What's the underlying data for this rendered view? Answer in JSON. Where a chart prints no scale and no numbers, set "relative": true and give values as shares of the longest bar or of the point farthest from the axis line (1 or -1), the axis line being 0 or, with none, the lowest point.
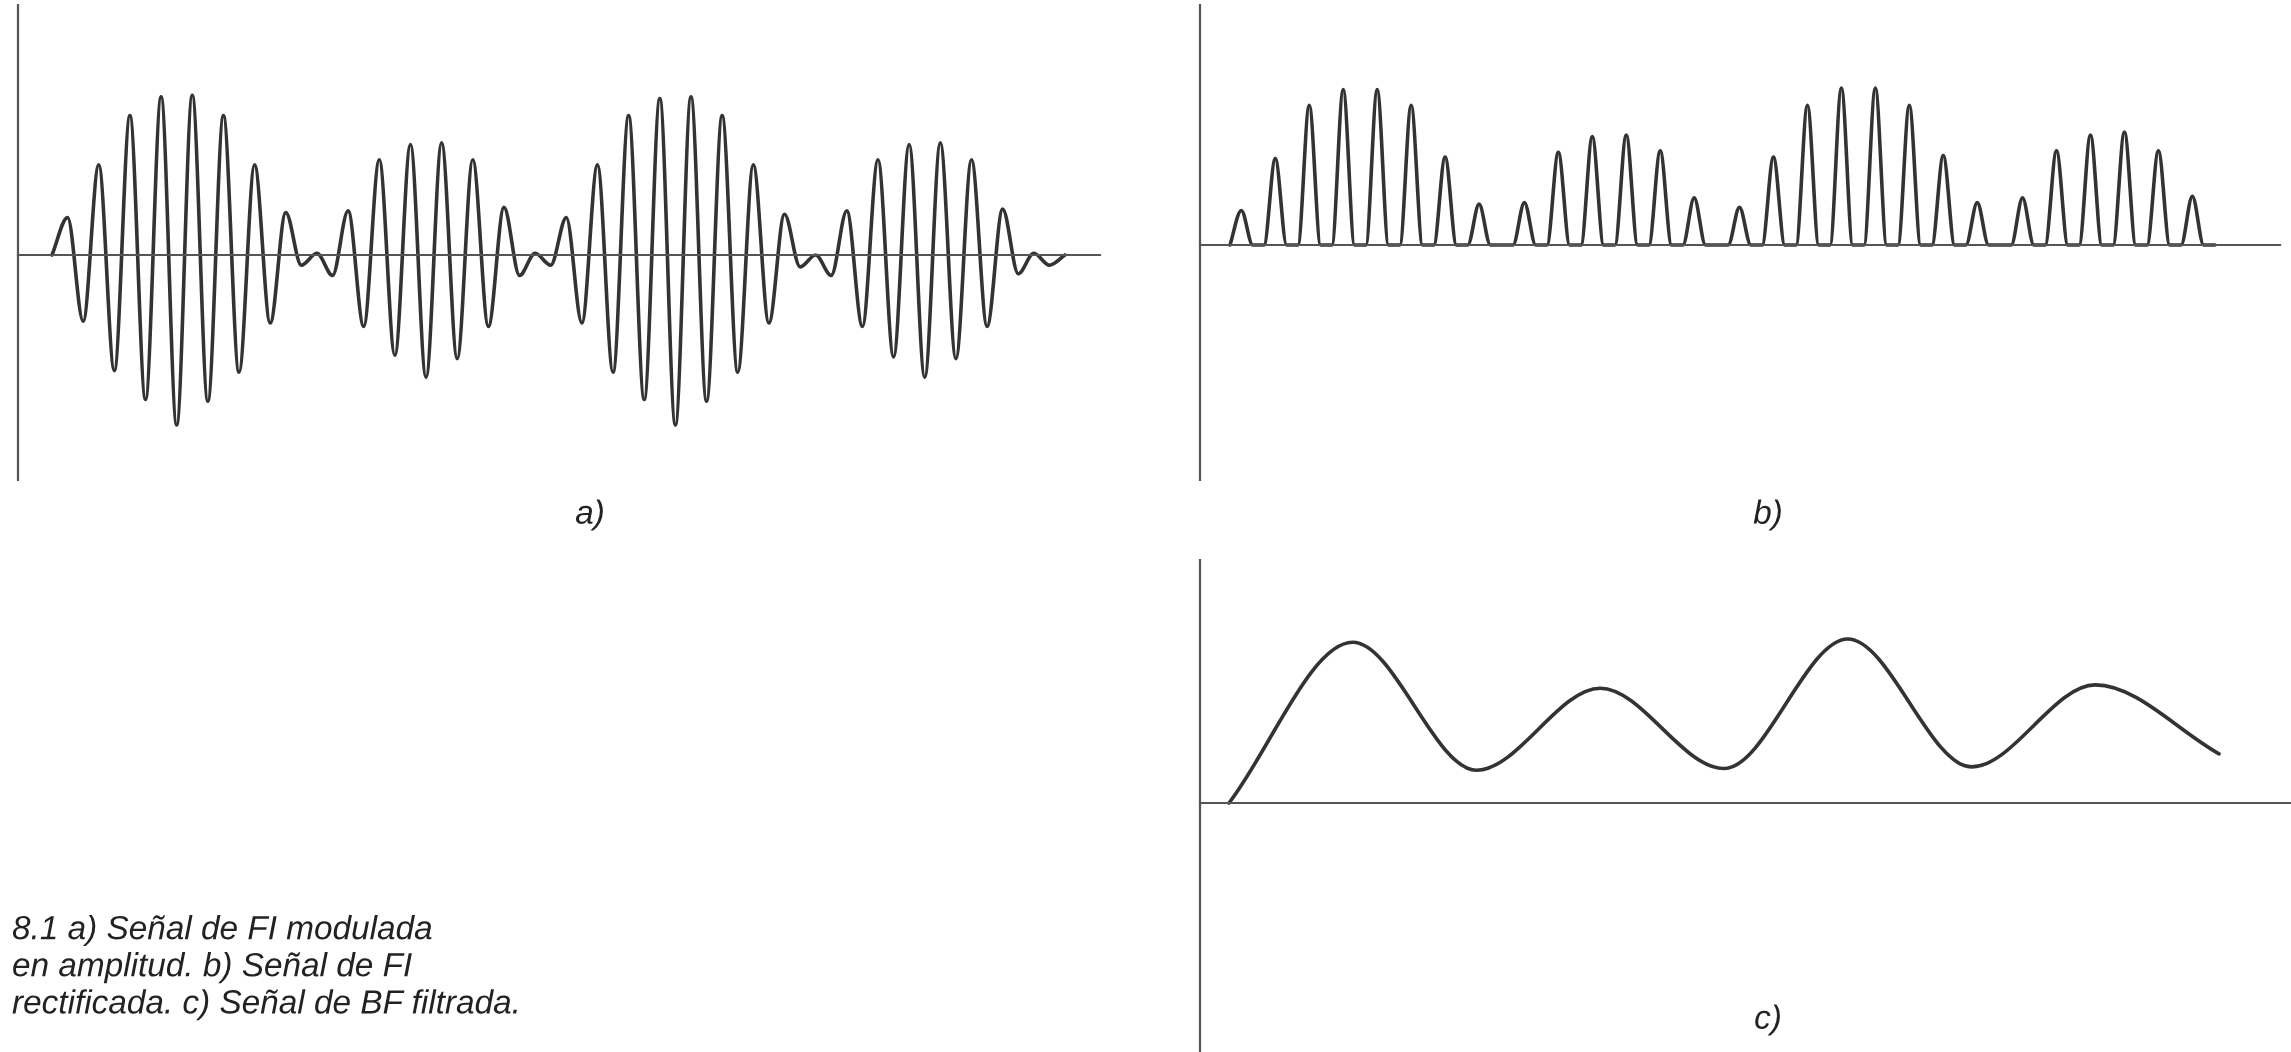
{
  "chart_data": [
    {
      "type": "line",
      "relative": true,
      "xlabel": "a)",
      "annotations": [
        "8.1 a) Señal de FI modulada\nen amplitud. b) Señal de FI\nrectificada. c) Señal de BF filtrada."
      ],
      "categories": [
        null,
        null,
        null,
        null,
        null,
        null,
        null,
        null,
        null,
        null,
        null,
        null,
        null,
        null,
        null,
        null,
        null,
        null,
        null,
        null,
        null,
        null,
        null,
        null,
        null,
        null,
        null,
        null,
        null,
        null,
        null,
        null,
        null,
        null,
        null,
        null,
        null,
        null,
        null,
        null,
        null,
        null,
        null,
        null,
        null,
        null,
        null,
        null,
        null,
        null,
        null,
        null,
        null,
        null,
        null,
        null,
        null,
        null,
        null,
        null,
        null,
        null,
        null,
        null,
        null,
        null
      ],
      "series": [
        {
          "color": "#333333",
          "values": [
            0,
            0.22,
            -0.39,
            0.53,
            -0.68,
            0.82,
            -0.85,
            0.93,
            -1,
            0.94,
            -0.86,
            0.82,
            -0.69,
            0.53,
            -0.4,
            0.25,
            -0.06,
            0.01,
            -0.12,
            0.26,
            -0.42,
            0.56,
            -0.59,
            0.65,
            -0.72,
            0.66,
            -0.61,
            0.56,
            -0.42,
            0.28,
            -0.12,
            0.01,
            -0.06,
            0.22,
            -0.4,
            0.53,
            -0.69,
            0.82,
            -0.85,
            0.92,
            -1,
            0.93,
            -0.86,
            0.82,
            -0.69,
            0.53,
            -0.4,
            0.24,
            -0.07,
            0,
            -0.12,
            0.26,
            -0.42,
            0.56,
            -0.6,
            0.65,
            -0.72,
            0.66,
            -0.61,
            0.56,
            -0.42,
            0.27,
            -0.11,
            0.01,
            -0.06,
            0
          ]
        }
      ]
    },
    {
      "type": "line",
      "relative": true,
      "xlabel": "b)",
      "categories": [
        null,
        null,
        null,
        null,
        null,
        null,
        null,
        null,
        null,
        null,
        null,
        null,
        null,
        null,
        null,
        null,
        null,
        null,
        null,
        null,
        null,
        null,
        null,
        null,
        null,
        null,
        null,
        null,
        null,
        null,
        null,
        null,
        null,
        null,
        null,
        null,
        null,
        null,
        null,
        null,
        null,
        null,
        null,
        null,
        null,
        null,
        null,
        null,
        null,
        null,
        null,
        null,
        null,
        null,
        null,
        null,
        null,
        null,
        null,
        null,
        null,
        null,
        null,
        null,
        null,
        null,
        null,
        null,
        null,
        null,
        null,
        null,
        null,
        null,
        null,
        null,
        null,
        null,
        null,
        null,
        null,
        null,
        null,
        null,
        null,
        null,
        null,
        null
      ],
      "series": [
        {
          "color": "#333333",
          "values": [
            0,
            0.22,
            0,
            0,
            0.55,
            0,
            0,
            0.89,
            0,
            0,
            0.99,
            0,
            0,
            0.99,
            0,
            0,
            0.89,
            0,
            0,
            0.56,
            0,
            0,
            0.26,
            0,
            0,
            0,
            0.27,
            0,
            0,
            0.59,
            0,
            0,
            0.69,
            0,
            0,
            0.7,
            0,
            0,
            0.6,
            0,
            0,
            0.3,
            0,
            0,
            0,
            0.24,
            0,
            0,
            0.56,
            0,
            0,
            0.89,
            0,
            0,
            1,
            0,
            0,
            1,
            0,
            0,
            0.89,
            0,
            0,
            0.57,
            0,
            0,
            0.27,
            0,
            0,
            0,
            0.3,
            0,
            0,
            0.6,
            0,
            0,
            0.7,
            0,
            0,
            0.72,
            0,
            0,
            0.6,
            0,
            0,
            0.31,
            0,
            0
          ]
        }
      ]
    },
    {
      "type": "line",
      "relative": true,
      "xlabel": "c)",
      "categories": [
        null,
        null,
        null,
        null,
        null,
        null,
        null,
        null,
        null
      ],
      "series": [
        {
          "color": "#333333",
          "values": [
            0,
            0.98,
            0.2,
            0.7,
            0.21,
            1,
            0.22,
            0.72,
            0.3
          ]
        }
      ]
    }
  ]
}
